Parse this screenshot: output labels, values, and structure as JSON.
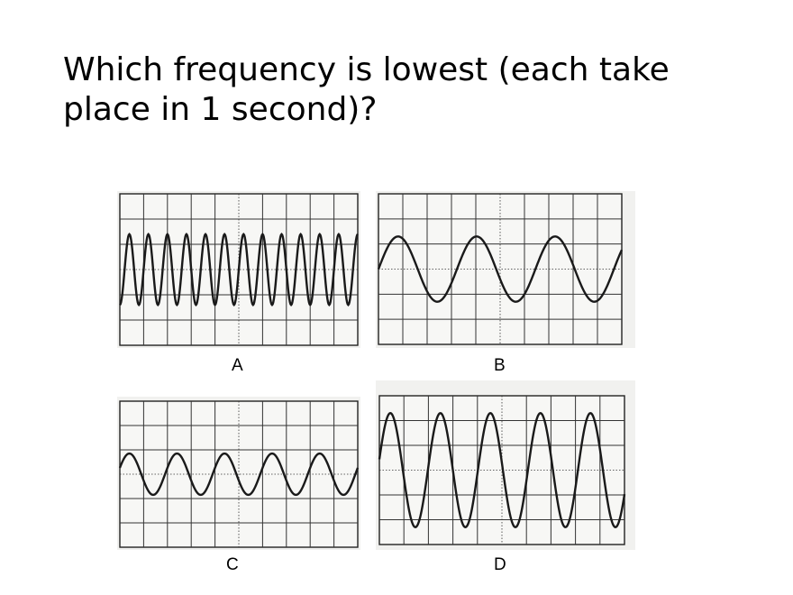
{
  "title": "Which frequency is lowest (each take place in 1 second)?",
  "grid": {
    "columns": 10,
    "rows": 6
  },
  "trace_color": "#1a1a1a",
  "panels": [
    {
      "label": "A",
      "cycles": 12.5,
      "amplitude_div": 1.4,
      "phase_deg": -90
    },
    {
      "label": "B",
      "cycles": 3.1,
      "amplitude_div": 1.3,
      "phase_deg": 0
    },
    {
      "label": "C",
      "cycles": 5,
      "amplitude_div": 0.85,
      "phase_deg": 18
    },
    {
      "label": "D",
      "cycles": 4.9,
      "amplitude_div": 2.3,
      "phase_deg": 11
    }
  ]
}
